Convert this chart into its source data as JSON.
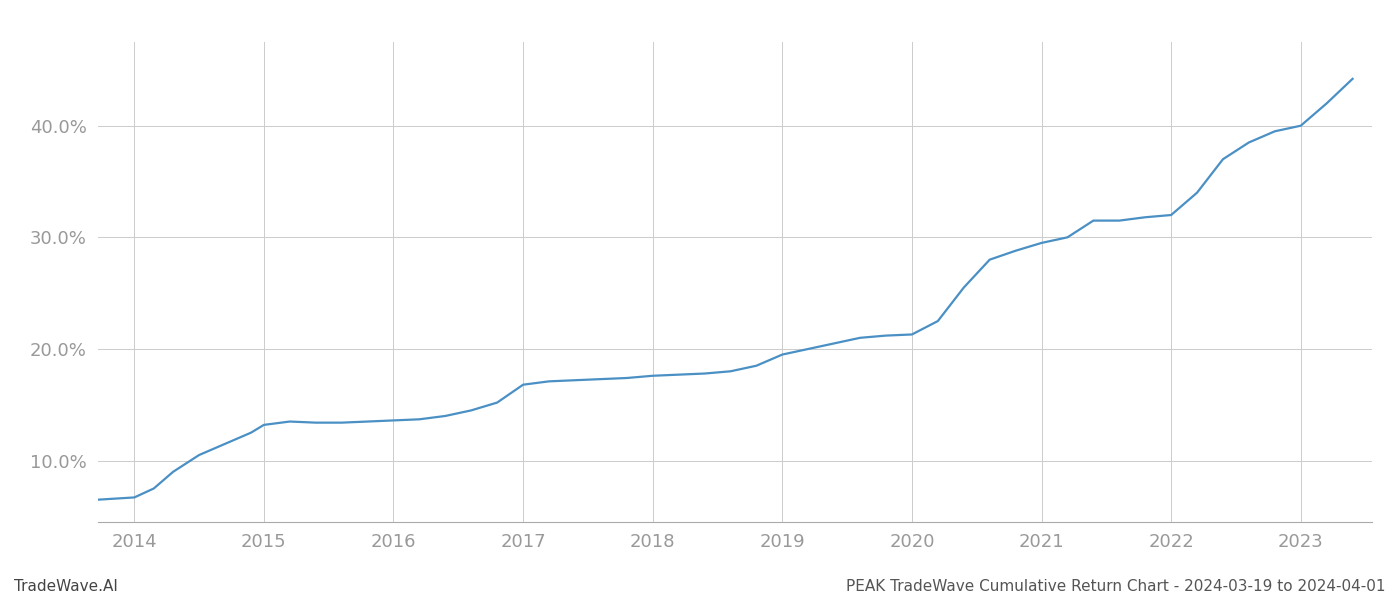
{
  "title": "PEAK TradeWave Cumulative Return Chart - 2024-03-19 to 2024-04-01",
  "watermark": "TradeWave.AI",
  "line_color": "#4a90c4",
  "background_color": "#ffffff",
  "grid_color": "#cccccc",
  "x_values": [
    2013.72,
    2014.0,
    2014.15,
    2014.3,
    2014.5,
    2014.7,
    2014.9,
    2015.0,
    2015.2,
    2015.4,
    2015.6,
    2015.8,
    2016.0,
    2016.2,
    2016.4,
    2016.6,
    2016.8,
    2017.0,
    2017.2,
    2017.4,
    2017.6,
    2017.8,
    2018.0,
    2018.2,
    2018.4,
    2018.6,
    2018.8,
    2019.0,
    2019.2,
    2019.4,
    2019.6,
    2019.8,
    2020.0,
    2020.2,
    2020.4,
    2020.6,
    2020.8,
    2021.0,
    2021.2,
    2021.4,
    2021.6,
    2021.8,
    2022.0,
    2022.2,
    2022.4,
    2022.6,
    2022.8,
    2023.0,
    2023.2,
    2023.4
  ],
  "y_values": [
    6.5,
    6.7,
    7.5,
    9.0,
    10.5,
    11.5,
    12.5,
    13.2,
    13.5,
    13.4,
    13.4,
    13.5,
    13.6,
    13.7,
    14.0,
    14.5,
    15.2,
    16.8,
    17.1,
    17.2,
    17.3,
    17.4,
    17.6,
    17.7,
    17.8,
    18.0,
    18.5,
    19.5,
    20.0,
    20.5,
    21.0,
    21.2,
    21.3,
    22.5,
    25.5,
    28.0,
    28.8,
    29.5,
    30.0,
    31.5,
    31.5,
    31.8,
    32.0,
    34.0,
    37.0,
    38.5,
    39.5,
    40.0,
    42.0,
    44.2
  ],
  "xlim": [
    2013.72,
    2023.55
  ],
  "ylim": [
    4.5,
    47.5
  ],
  "yticks": [
    10.0,
    20.0,
    30.0,
    40.0
  ],
  "xticks": [
    2014,
    2015,
    2016,
    2017,
    2018,
    2019,
    2020,
    2021,
    2022,
    2023
  ],
  "line_width": 1.6,
  "tick_label_color": "#999999",
  "title_color": "#555555",
  "watermark_color": "#444444",
  "title_fontsize": 11,
  "watermark_fontsize": 11,
  "tick_fontsize": 13
}
